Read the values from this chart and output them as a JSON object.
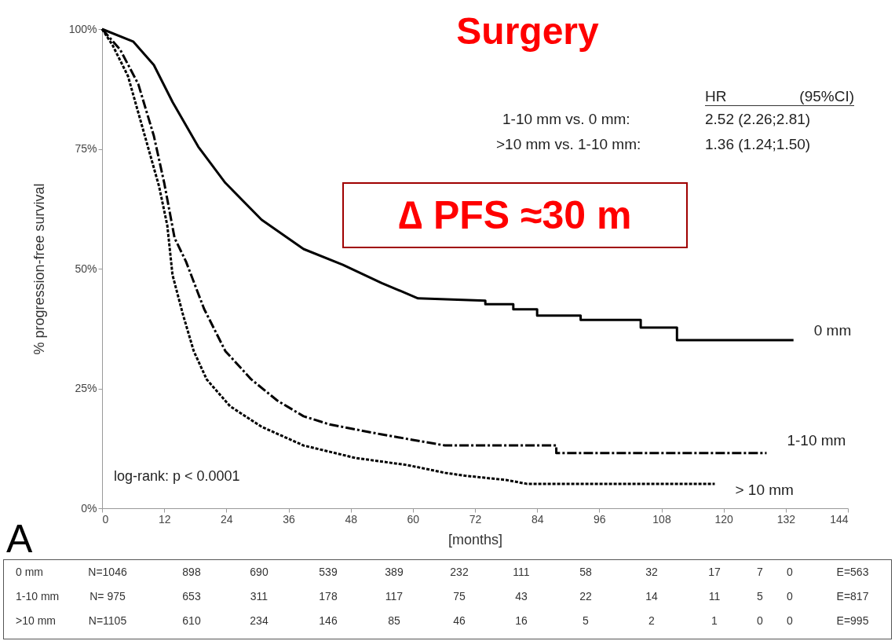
{
  "chart_data": {
    "type": "line",
    "title": "Surgery",
    "xlabel": "[months]",
    "ylabel": "% progression-free survival",
    "xlim": [
      0,
      144
    ],
    "xticks": [
      0,
      12,
      24,
      36,
      48,
      60,
      72,
      84,
      96,
      108,
      120,
      132,
      144
    ],
    "ylim": [
      0,
      100
    ],
    "yticks": [
      {
        "value": 0,
        "label": "0%"
      },
      {
        "value": 25,
        "label": "25%"
      },
      {
        "value": 50,
        "label": "50%"
      },
      {
        "value": 75,
        "label": "75%"
      },
      {
        "value": 100,
        "label": "100%"
      }
    ],
    "grid": false,
    "marker": "none",
    "series": [
      {
        "name": "0 mm",
        "color": "#000000",
        "line_style": "solid",
        "x": [
          0,
          6,
          10,
          13.6,
          18.6,
          23.8,
          30.8,
          38.9,
          46.5,
          54,
          61,
          74,
          74,
          79.4,
          79.4,
          84,
          84,
          92.4,
          92.4,
          104,
          104,
          111,
          111,
          133.5
        ],
        "values": [
          100,
          97.4,
          92.5,
          84.8,
          75.4,
          67.9,
          60.2,
          54.1,
          50.8,
          47,
          43.8,
          43.3,
          42.6,
          42.6,
          41.5,
          41.5,
          40.2,
          40.2,
          39.3,
          39.3,
          37.7,
          37.7,
          35.1,
          35.1
        ]
      },
      {
        "name": "1-10 mm",
        "color": "#000000",
        "line_style": "dashed",
        "x": [
          0,
          3.5,
          7,
          10,
          12,
          14,
          16.2,
          19.7,
          23.8,
          28.8,
          33.8,
          38.9,
          43.9,
          54,
          66.2,
          87.7,
          87.7,
          128.3
        ],
        "values": [
          100,
          95.7,
          88.5,
          77.7,
          67.9,
          56.4,
          51.5,
          41.6,
          32.8,
          26.9,
          22.5,
          19.2,
          17.5,
          15.4,
          13.1,
          13.1,
          11.5,
          11.5
        ]
      },
      {
        "name": "> 10 mm",
        "color": "#000000",
        "line_style": "dotted",
        "x": [
          0,
          2,
          5,
          8,
          11,
          12.6,
          13.6,
          15.6,
          17.7,
          20.2,
          24.7,
          30.8,
          38.9,
          48.9,
          59,
          66.2,
          70,
          78,
          82,
          118.3
        ],
        "values": [
          100,
          96.7,
          90.2,
          78.7,
          67.2,
          59,
          48.7,
          40.5,
          32.8,
          26.9,
          21.3,
          17,
          13.1,
          10.5,
          9,
          7.4,
          6.8,
          5.9,
          5.1,
          5.1
        ]
      }
    ],
    "annotations": [
      "HR\t(95%CI)",
      "1-10 mm vs. 0 mm:\t2.52 (2.26;2.81)",
      ">10 mm vs. 1-10 mm:\t1.36 (1.24;1.50)",
      "∆ PFS ≈30 m",
      "log-rank: p < 0.0001",
      "A",
      "0 mm\tN=1046\t898\t690\t539\t389\t232\t111\t58\t32\t17\t7\t0\tE=563",
      "1-10 mm\tN= 975\t653\t311\t178\t117\t75\t43\t22\t14\t11\t5\t0\tE=817",
      ">10 mm\tN=1105\t610\t234\t146\t85\t46\t16\t5\t2\t1\t0\t0\tE=995"
    ]
  }
}
